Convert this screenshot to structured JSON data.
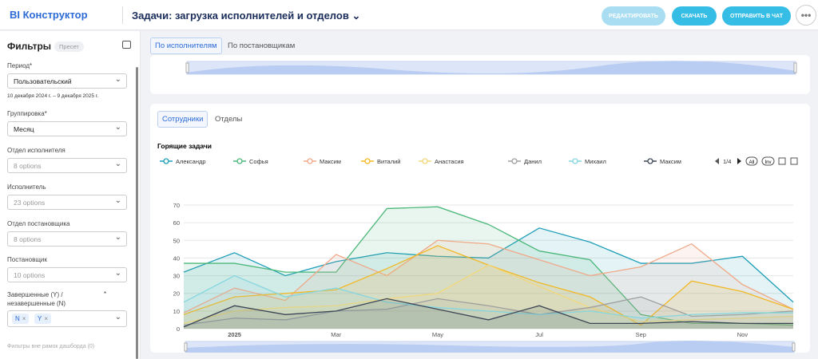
{
  "header": {
    "logo": "BI Конструктор",
    "title": "Задачи: загрузка исполнителей и отделов",
    "buttons": [
      "РЕДАКТИРОВАТЬ",
      "СКАЧАТЬ",
      "ОТПРАВИТЬ В ЧАТ"
    ]
  },
  "sidebar": {
    "title": "Фильтры",
    "preset": "Пресет",
    "fields": [
      {
        "label": "Период*",
        "value": "Пользовательский",
        "hint": "10 декабря 2024 г. – 9 декабря 2025 г."
      },
      {
        "label": "Группировка*",
        "value": "Месяц"
      },
      {
        "label": "Отдел исполнителя",
        "value": "8 options"
      },
      {
        "label": "Исполнитель",
        "value": "23 options"
      },
      {
        "label": "Отдел постановщика",
        "value": "8 options"
      },
      {
        "label": "Постановщик",
        "value": "10 options"
      },
      {
        "label": "Завершенные (Y) / незавершенные (N)",
        "required": "*",
        "tags": [
          "N",
          "Y"
        ]
      }
    ],
    "footer": "Фильтры вне рамок дашборда (0)"
  },
  "tabs": [
    "По исполнителям",
    "По постановщикам"
  ],
  "subtabs": [
    "Сотрудники",
    "Отделы"
  ],
  "legend_nav": {
    "page": "1/4",
    "all": "All",
    "inv": "Inv"
  },
  "chart_data": {
    "type": "area",
    "title": "Горящие задачи",
    "categories": [
      null,
      "2025",
      null,
      "Mar",
      null,
      "May",
      null,
      "Jul",
      null,
      "Sep",
      null,
      "Nov",
      null
    ],
    "ylim": [
      0,
      70
    ],
    "yticks": [
      0,
      10,
      20,
      30,
      40,
      50,
      60,
      70
    ],
    "grid": true,
    "series": [
      {
        "name": "Александр",
        "color": "#1f9fb8",
        "values": [
          32,
          43,
          30,
          38,
          43,
          41,
          40,
          57,
          49,
          37,
          37,
          41,
          15
        ]
      },
      {
        "name": "Софья",
        "color": "#4cb87a",
        "values": [
          37,
          37,
          32,
          32,
          68,
          69,
          59,
          44,
          39,
          8,
          3,
          3,
          2
        ]
      },
      {
        "name": "Максим",
        "color": "#f0a888",
        "values": [
          9,
          23,
          16,
          42,
          30,
          50,
          48,
          39,
          30,
          35,
          48,
          25,
          11
        ]
      },
      {
        "name": "Виталий",
        "color": "#f2b824",
        "values": [
          8,
          18,
          20,
          22,
          34,
          47,
          36,
          26,
          18,
          2,
          27,
          21,
          11
        ]
      },
      {
        "name": "Анастасия",
        "color": "#f2d77a",
        "values": [
          3,
          10,
          12,
          13,
          17,
          20,
          36,
          24,
          12,
          4,
          5,
          6,
          7
        ]
      },
      {
        "name": "Данил",
        "color": "#9e9e9e",
        "values": [
          2,
          6,
          5,
          10,
          11,
          17,
          13,
          8,
          12,
          18,
          7,
          8,
          10
        ]
      },
      {
        "name": "Михаил",
        "color": "#86d6df",
        "values": [
          15,
          30,
          18,
          23,
          15,
          12,
          10,
          8,
          10,
          6,
          8,
          9,
          9
        ]
      },
      {
        "name": "Максим",
        "color": "#3d4656",
        "values": [
          1,
          13,
          8,
          10,
          17,
          11,
          5,
          13,
          3,
          3,
          4,
          3,
          3
        ]
      }
    ]
  }
}
